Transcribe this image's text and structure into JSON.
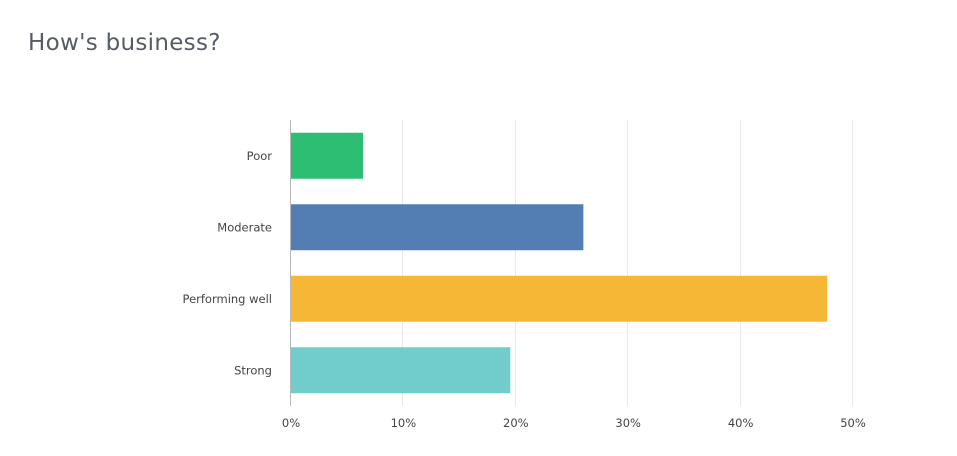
{
  "page": {
    "title": "How's business?"
  },
  "chart_data": {
    "type": "bar",
    "orientation": "horizontal",
    "title": "How's business?",
    "xlabel": "",
    "ylabel": "",
    "categories": [
      "Poor",
      "Moderate",
      "Performing well",
      "Strong"
    ],
    "values": [
      6.5,
      26.1,
      47.8,
      19.6
    ],
    "colors": [
      "#2dbe73",
      "#527eb3",
      "#f6b736",
      "#71cdcc"
    ],
    "xlim": [
      0,
      50
    ],
    "ticks": [
      0,
      10,
      20,
      30,
      40,
      50
    ],
    "tick_labels": [
      "0%",
      "10%",
      "20%",
      "30%",
      "40%",
      "50%"
    ],
    "unit": "%",
    "grid": true,
    "legend": "none"
  }
}
